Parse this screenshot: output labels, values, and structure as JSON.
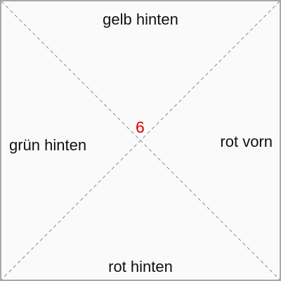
{
  "labels": {
    "top": "gelb hinten",
    "bottom": "rot hinten",
    "left": "grün hinten",
    "right": "rot vorn"
  },
  "center_number": "6",
  "colors": {
    "center_number": "#e00000",
    "diagonals": "#8c8c8c",
    "border": "#a8a8a8",
    "background": "#fafafa"
  }
}
